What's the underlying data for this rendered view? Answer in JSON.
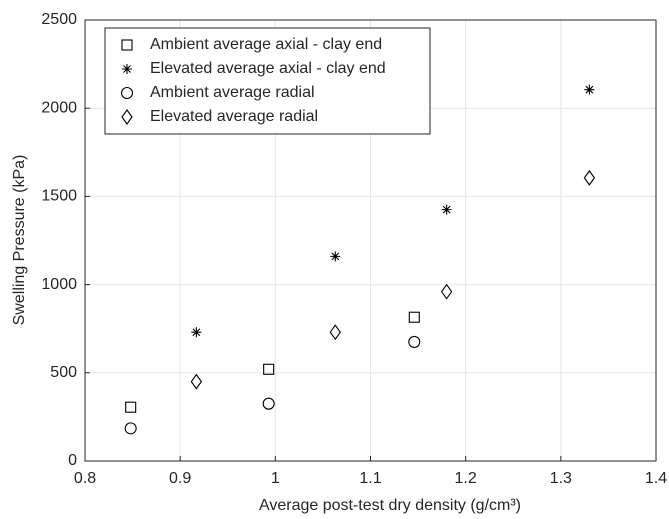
{
  "chart_data": {
    "type": "scatter",
    "xlabel": "Average post-test dry density (g/cm³)",
    "ylabel": "Swelling Pressure (kPa)",
    "xlim": [
      0.8,
      1.4
    ],
    "xticks": [
      0.8,
      0.9,
      1,
      1.1,
      1.2,
      1.3,
      1.4
    ],
    "ylim": [
      0,
      2500
    ],
    "yticks": [
      0,
      500,
      1000,
      1500,
      2000,
      2500
    ],
    "grid": true,
    "legend": "upper left",
    "series": [
      {
        "name": "Ambient average axial - clay end",
        "color": "#000000",
        "marker": "square",
        "x": [
          0.848,
          0.993,
          1.146
        ],
        "values": [
          305,
          520,
          815
        ]
      },
      {
        "name": "Elevated average axial - clay end",
        "color": "#000000",
        "marker": "asterisk",
        "x": [
          0.917,
          1.063,
          1.18,
          1.33
        ],
        "values": [
          730,
          1160,
          1425,
          2105
        ]
      },
      {
        "name": "Ambient average radial",
        "color": "#000000",
        "marker": "circle",
        "x": [
          0.848,
          0.993,
          1.146
        ],
        "values": [
          185,
          325,
          675
        ]
      },
      {
        "name": "Elevated average radial",
        "color": "#000000",
        "marker": "diamond",
        "x": [
          0.917,
          1.063,
          1.18,
          1.33
        ],
        "values": [
          450,
          730,
          960,
          1605
        ]
      }
    ]
  }
}
